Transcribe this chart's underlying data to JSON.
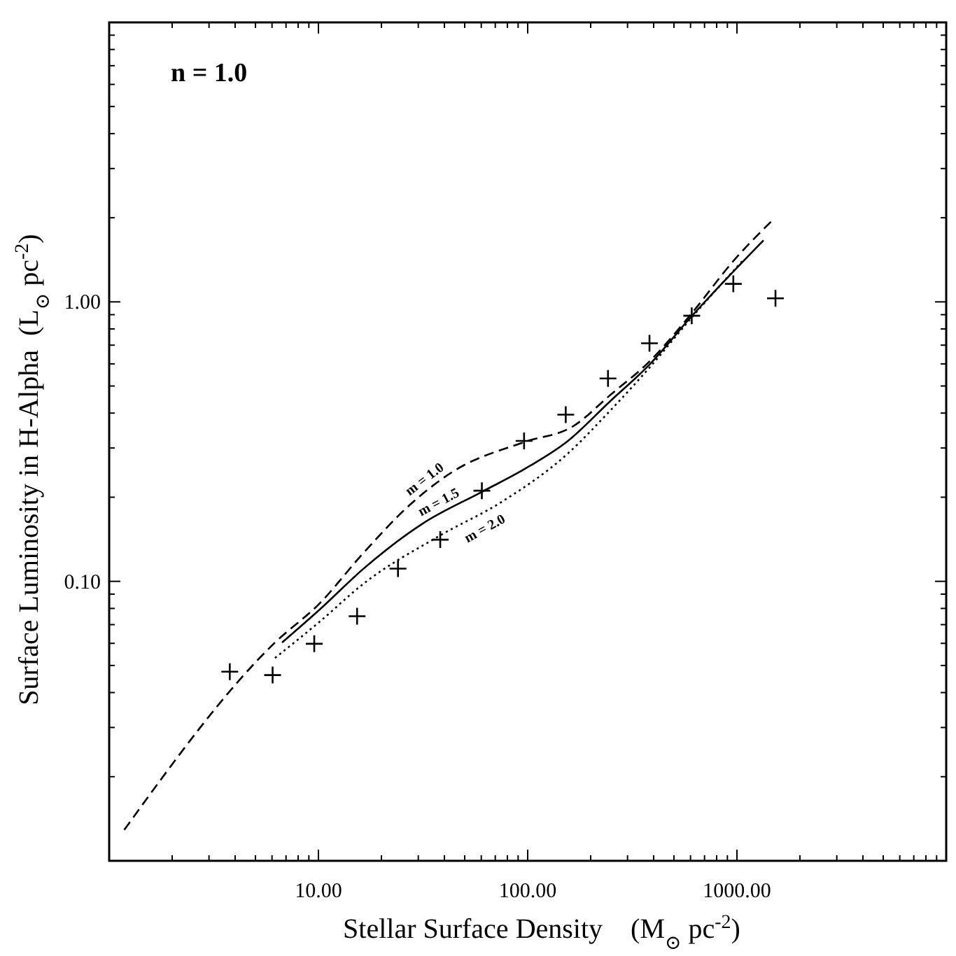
{
  "chart_data": {
    "type": "line",
    "log": "xy",
    "xlim": [
      1,
      10000
    ],
    "ylim": [
      0.01,
      10
    ],
    "xticks": [
      {
        "value": 2,
        "label": null
      },
      {
        "value": 3,
        "label": null
      },
      {
        "value": 4,
        "label": null
      },
      {
        "value": 5,
        "label": null
      },
      {
        "value": 6,
        "label": null
      },
      {
        "value": 7,
        "label": null
      },
      {
        "value": 8,
        "label": null
      },
      {
        "value": 9,
        "label": null
      },
      {
        "value": 10,
        "label": "10.00"
      },
      {
        "value": 20,
        "label": null
      },
      {
        "value": 30,
        "label": null
      },
      {
        "value": 40,
        "label": null
      },
      {
        "value": 50,
        "label": null
      },
      {
        "value": 60,
        "label": null
      },
      {
        "value": 70,
        "label": null
      },
      {
        "value": 80,
        "label": null
      },
      {
        "value": 90,
        "label": null
      },
      {
        "value": 100,
        "label": "100.00"
      },
      {
        "value": 200,
        "label": null
      },
      {
        "value": 300,
        "label": null
      },
      {
        "value": 400,
        "label": null
      },
      {
        "value": 500,
        "label": null
      },
      {
        "value": 600,
        "label": null
      },
      {
        "value": 700,
        "label": null
      },
      {
        "value": 800,
        "label": null
      },
      {
        "value": 900,
        "label": null
      },
      {
        "value": 1000,
        "label": "1000.00"
      },
      {
        "value": 2000,
        "label": null
      },
      {
        "value": 3000,
        "label": null
      },
      {
        "value": 4000,
        "label": null
      },
      {
        "value": 5000,
        "label": null
      },
      {
        "value": 6000,
        "label": null
      },
      {
        "value": 7000,
        "label": null
      },
      {
        "value": 8000,
        "label": null
      },
      {
        "value": 9000,
        "label": null
      }
    ],
    "yticks": [
      {
        "value": 0.02,
        "label": null
      },
      {
        "value": 0.03,
        "label": null
      },
      {
        "value": 0.04,
        "label": null
      },
      {
        "value": 0.05,
        "label": null
      },
      {
        "value": 0.06,
        "label": null
      },
      {
        "value": 0.07,
        "label": null
      },
      {
        "value": 0.08,
        "label": null
      },
      {
        "value": 0.09,
        "label": null
      },
      {
        "value": 0.1,
        "label": "0.10"
      },
      {
        "value": 0.2,
        "label": null
      },
      {
        "value": 0.3,
        "label": null
      },
      {
        "value": 0.4,
        "label": null
      },
      {
        "value": 0.5,
        "label": null
      },
      {
        "value": 0.6,
        "label": null
      },
      {
        "value": 0.7,
        "label": null
      },
      {
        "value": 0.8,
        "label": null
      },
      {
        "value": 0.9,
        "label": null
      },
      {
        "value": 1,
        "label": "1.00"
      },
      {
        "value": 2,
        "label": null
      },
      {
        "value": 3,
        "label": null
      },
      {
        "value": 4,
        "label": null
      },
      {
        "value": 5,
        "label": null
      },
      {
        "value": 6,
        "label": null
      },
      {
        "value": 7,
        "label": null
      },
      {
        "value": 8,
        "label": null
      },
      {
        "value": 9,
        "label": null
      }
    ],
    "xlabel": "Stellar Surface Density    (M$_{⊙}$ pc$^{-2}$)",
    "ylabel": "Surface Luminosity in H-Alpha  (L$_{⊙}$ pc$^{-2}$)",
    "annotations": [
      "n = 1.0"
    ],
    "grid": false,
    "series": [
      {
        "name": "m = 1.0",
        "color": "#000000",
        "line_style": "dashed",
        "x": [
          1.18,
          6.2,
          10.2,
          16.2,
          27.6,
          43.9,
          96.1,
          166,
          247,
          380,
          608,
          961,
          1479
        ],
        "values": [
          0.0129,
          0.0604,
          0.0838,
          0.125,
          0.189,
          0.247,
          0.315,
          0.36,
          0.463,
          0.61,
          0.91,
          1.4,
          1.96
        ]
      },
      {
        "name": "m = 1.5",
        "color": "#000000",
        "line_style": "solid",
        "x": [
          6.7,
          10.2,
          16.2,
          31.5,
          60.4,
          97.3,
          155,
          247,
          380,
          608,
          1340
        ],
        "values": [
          0.0604,
          0.0796,
          0.11,
          0.161,
          0.209,
          0.253,
          0.317,
          0.44,
          0.594,
          0.889,
          1.66
        ]
      },
      {
        "name": "m = 2.0",
        "color": "#000000",
        "line_style": "dotted",
        "x": [
          6.2,
          10.2,
          16.2,
          38.2,
          74.7,
          155,
          247,
          380,
          608,
          1061
        ],
        "values": [
          0.0532,
          0.072,
          0.0973,
          0.146,
          0.192,
          0.286,
          0.407,
          0.579,
          0.879,
          1.4
        ]
      },
      {
        "type": "scatter",
        "color": "#000000",
        "marker": "cross",
        "x": [
          3.77,
          6.04,
          9.55,
          15.3,
          24,
          38.2,
          60.4,
          96.1,
          152,
          242,
          382,
          608,
          961,
          1528
        ],
        "values": [
          0.0475,
          0.0462,
          0.0598,
          0.075,
          0.111,
          0.141,
          0.211,
          0.318,
          0.395,
          0.532,
          0.711,
          0.892,
          1.16,
          1.03
        ]
      }
    ]
  }
}
